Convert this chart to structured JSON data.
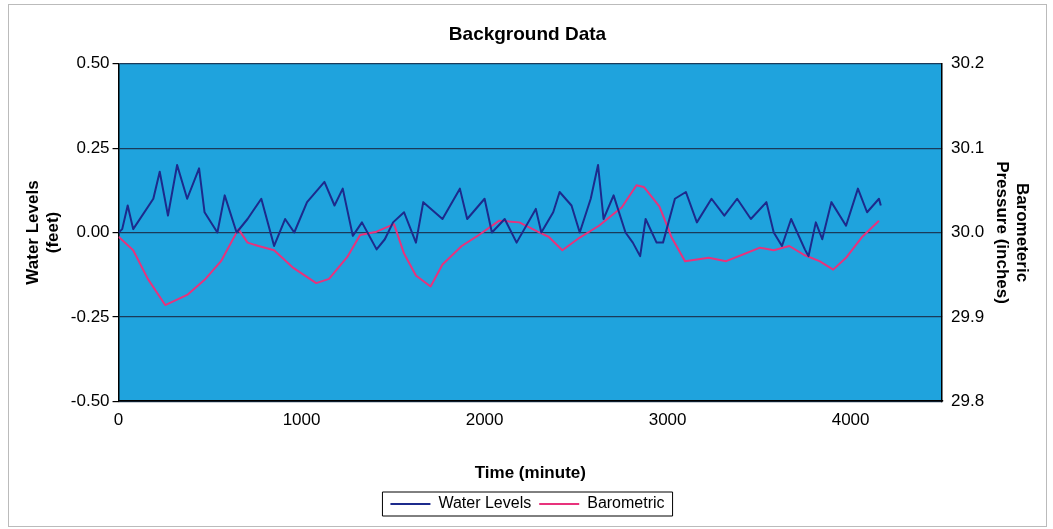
{
  "chart_data": {
    "type": "line",
    "title": "Background Data",
    "xlabel": "Time (minute)",
    "ylabel": "Water Levels (feet)",
    "y2label": "Barometeric Pressure (inches)",
    "xlim": [
      0,
      4500
    ],
    "xticks": [
      0,
      1000,
      2000,
      3000,
      4000
    ],
    "ylim": [
      -0.5,
      0.5
    ],
    "yticks": [
      {
        "value": -0.5,
        "label": "-0.50"
      },
      {
        "value": -0.25,
        "label": "-0.25"
      },
      {
        "value": 0,
        "label": "0.00"
      },
      {
        "value": 0.25,
        "label": "0.25"
      },
      {
        "value": 0.5,
        "label": "0.50"
      }
    ],
    "y2lim": [
      29.8,
      30.2
    ],
    "y2ticks": [
      {
        "value": 29.8,
        "label": "29.8"
      },
      {
        "value": 29.9,
        "label": "29.9"
      },
      {
        "value": 30,
        "label": "30.0"
      },
      {
        "value": 30.1,
        "label": "30.1"
      },
      {
        "value": 30.2,
        "label": "30.2"
      }
    ],
    "grid": "y",
    "legend": "bottom",
    "marker": "none",
    "series": [
      {
        "name": "Water Levels",
        "color": "#1c2a8c",
        "x": [
          0,
          20,
          50,
          80,
          190,
          225,
          270,
          320,
          375,
          440,
          470,
          540,
          580,
          645,
          705,
          780,
          850,
          910,
          960,
          1030,
          1125,
          1180,
          1225,
          1280,
          1330,
          1410,
          1455,
          1500,
          1560,
          1625,
          1665,
          1770,
          1865,
          1905,
          2000,
          2040,
          2110,
          2175,
          2280,
          2310,
          2375,
          2410,
          2475,
          2520,
          2580,
          2620,
          2650,
          2705,
          2770,
          2810,
          2850,
          2880,
          2940,
          2975,
          3040,
          3100,
          3160,
          3240,
          3310,
          3380,
          3455,
          3540,
          3580,
          3625,
          3675,
          3750,
          3770,
          3810,
          3845,
          3895,
          3975,
          4040,
          4090,
          4155,
          4165
        ],
        "values": [
          0.0,
          0.01,
          0.08,
          0.01,
          0.1,
          0.18,
          0.05,
          0.2,
          0.1,
          0.19,
          0.06,
          0.0,
          0.11,
          0.0,
          0.04,
          0.1,
          -0.04,
          0.04,
          0.0,
          0.09,
          0.15,
          0.08,
          0.13,
          -0.01,
          0.03,
          -0.05,
          -0.02,
          0.03,
          0.06,
          -0.03,
          0.09,
          0.04,
          0.13,
          0.04,
          0.1,
          0.0,
          0.04,
          -0.03,
          0.07,
          0.0,
          0.06,
          0.12,
          0.08,
          0.0,
          0.1,
          0.2,
          0.04,
          0.11,
          0.0,
          -0.03,
          -0.07,
          0.04,
          -0.03,
          -0.03,
          0.1,
          0.12,
          0.03,
          0.1,
          0.05,
          0.1,
          0.04,
          0.09,
          0.0,
          -0.04,
          0.04,
          -0.05,
          -0.07,
          0.03,
          -0.02,
          0.09,
          0.02,
          0.13,
          0.06,
          0.1,
          0.08
        ]
      },
      {
        "name": "Barometric",
        "color": "#e8327c",
        "axis": "y2",
        "x": [
          0,
          80,
          160,
          255,
          375,
          475,
          560,
          655,
          705,
          765,
          850,
          955,
          1080,
          1150,
          1250,
          1320,
          1410,
          1505,
          1560,
          1625,
          1705,
          1770,
          1875,
          1955,
          2080,
          2190,
          2290,
          2350,
          2425,
          2520,
          2625,
          2750,
          2830,
          2870,
          2955,
          3005,
          3020,
          3095,
          3225,
          3320,
          3505,
          3580,
          3665,
          3750,
          3830,
          3905,
          3975,
          4060,
          4155
        ],
        "values": [
          29.995,
          29.979,
          29.945,
          29.914,
          29.926,
          29.945,
          29.966,
          30.004,
          29.988,
          29.984,
          29.979,
          29.958,
          29.94,
          29.945,
          29.971,
          29.997,
          30.001,
          30.01,
          29.975,
          29.949,
          29.936,
          29.962,
          29.984,
          29.995,
          30.014,
          30.012,
          30.001,
          29.995,
          29.979,
          29.994,
          30.008,
          30.03,
          30.056,
          30.054,
          30.031,
          30.004,
          29.995,
          29.966,
          29.97,
          29.966,
          29.982,
          29.979,
          29.984,
          29.973,
          29.966,
          29.956,
          29.97,
          29.994,
          30.014
        ]
      }
    ]
  }
}
